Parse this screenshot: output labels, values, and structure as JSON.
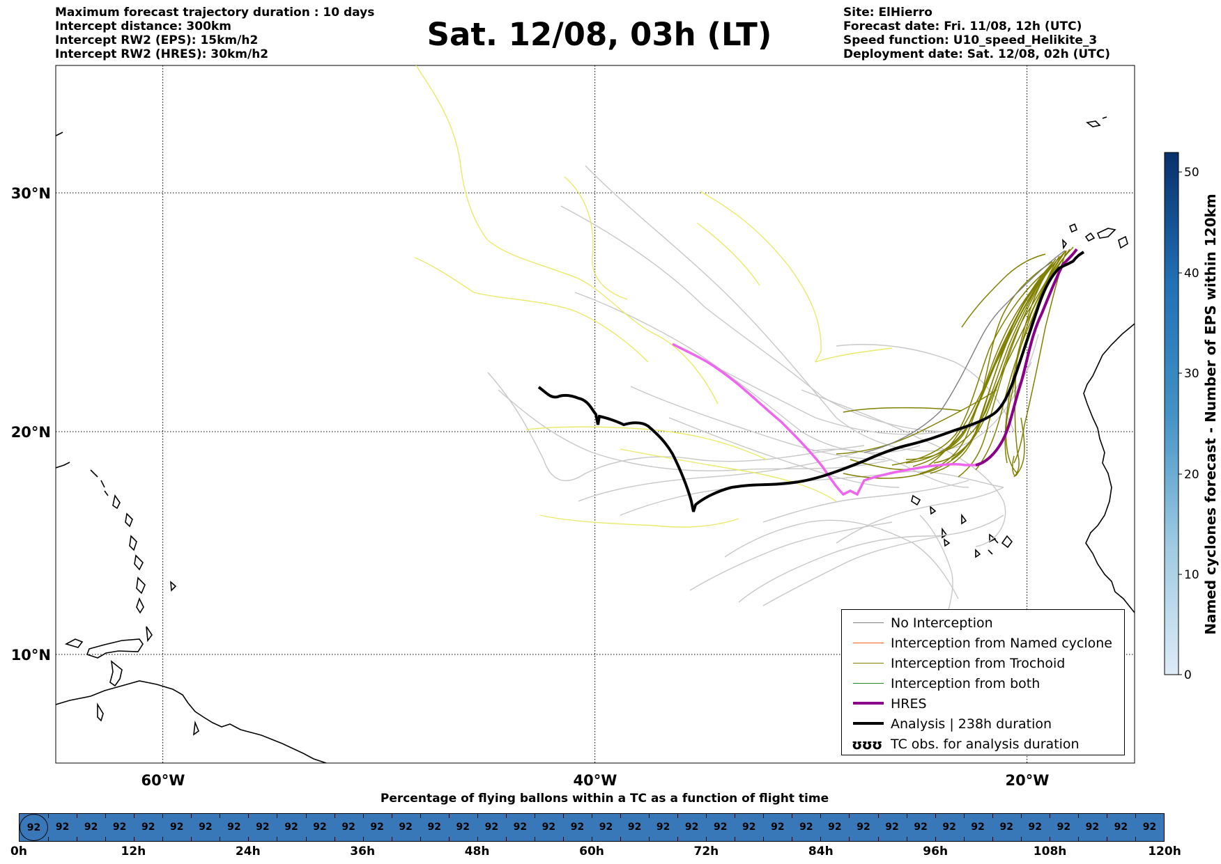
{
  "info_left": [
    "Maximum forecast trajectory duration : 10 days",
    "Intercept distance: 300km",
    "Intercept RW2 (EPS):  15km/h2",
    "Intercept RW2 (HRES): 30km/h2"
  ],
  "info_right": [
    "Site: ElHierro",
    "Forecast date: Fri. 11/08, 12h (UTC)",
    "Speed function: U10_speed_Helikite_3",
    "Deployment date: Sat. 12/08, 02h (UTC)"
  ],
  "title": "Sat. 12/08, 03h (LT)",
  "map": {
    "lat_labels": [
      "30°N",
      "20°N",
      "10°N"
    ],
    "lon_labels": [
      "60°W",
      "40°W",
      "20°W"
    ],
    "lon_range": [
      -65,
      -15
    ],
    "lat_range": [
      5.4,
      34.6
    ],
    "gridlines": "dotted"
  },
  "legend": {
    "placement": "bottom-right",
    "items": [
      {
        "label": "No Interception",
        "color": "#808080",
        "kind": "line-thin"
      },
      {
        "label": "Interception from Named cyclone",
        "color": "#ff5a1e",
        "kind": "line-thin"
      },
      {
        "label": "Interception from Trochoid",
        "color": "#808000",
        "kind": "line-thin"
      },
      {
        "label": "Interception from both",
        "color": "#228b22",
        "kind": "line-thin"
      },
      {
        "label": "HRES",
        "color": "#8b008b",
        "kind": "line-thick"
      },
      {
        "label": "Analysis | 238h duration",
        "color": "#000000",
        "kind": "line-thick"
      },
      {
        "label": "TC obs. for analysis duration",
        "color": "#000000",
        "kind": "symbol",
        "symbol": "ʊʊʊ"
      }
    ]
  },
  "colorbar": {
    "title": "Named cyclones forecast - Number of EPS within 120km",
    "ticks": [
      "0",
      "10",
      "20",
      "30",
      "40",
      "50"
    ],
    "range": [
      0,
      52
    ],
    "colors": [
      "#deebf7",
      "#9ecae1",
      "#4292c6",
      "#2171b5",
      "#08306b"
    ]
  },
  "percentage_bar": {
    "title": "Percentage of flying ballons within a TC as a function of flight time",
    "values": [
      "92",
      "92",
      "92",
      "92",
      "92",
      "92",
      "92",
      "92",
      "92",
      "92",
      "92",
      "92",
      "92",
      "92",
      "92",
      "92",
      "92",
      "92",
      "92",
      "92",
      "92",
      "92",
      "92",
      "92",
      "92",
      "92",
      "92",
      "92",
      "92",
      "92",
      "92",
      "92",
      "92",
      "92",
      "92",
      "92",
      "92",
      "92",
      "92",
      "92"
    ],
    "time_labels": [
      "0h",
      "12h",
      "24h",
      "36h",
      "48h",
      "60h",
      "72h",
      "84h",
      "96h",
      "108h",
      "120h"
    ],
    "bar_color": "#3878b8"
  },
  "colors": {
    "hres": "#ee66ee",
    "hres_end": "#8b008b",
    "analysis": "#000000",
    "eps_gray": "#c8c8c8",
    "eps_yellow": "#eaea6a",
    "eps_olive": "#808000"
  }
}
